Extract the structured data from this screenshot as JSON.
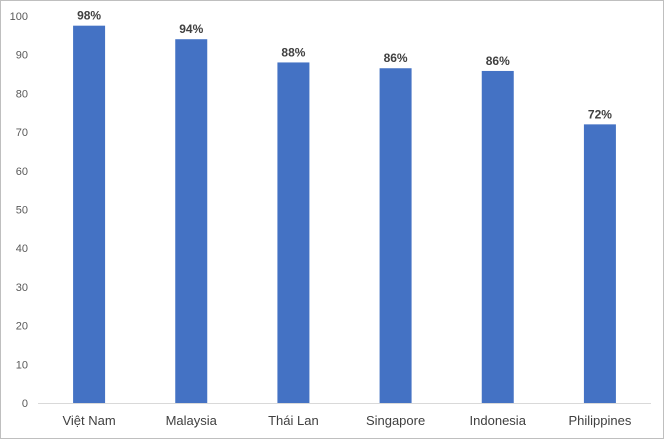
{
  "chart_data": {
    "type": "bar",
    "categories": [
      "Việt Nam",
      "Malaysia",
      "Thái Lan",
      "Singapore",
      "Indonesia",
      "Philippines"
    ],
    "values": [
      97.5,
      94,
      88,
      86.5,
      85.8,
      72
    ],
    "data_labels": [
      "98%",
      "94%",
      "88%",
      "86%",
      "86%",
      "72%"
    ],
    "ylim": [
      0,
      100
    ],
    "yticks": [
      "0",
      "10",
      "20",
      "30",
      "40",
      "50",
      "60",
      "70",
      "80",
      "90",
      "100"
    ],
    "grid": false,
    "legend": "none",
    "bar_color": "#4472c4"
  }
}
